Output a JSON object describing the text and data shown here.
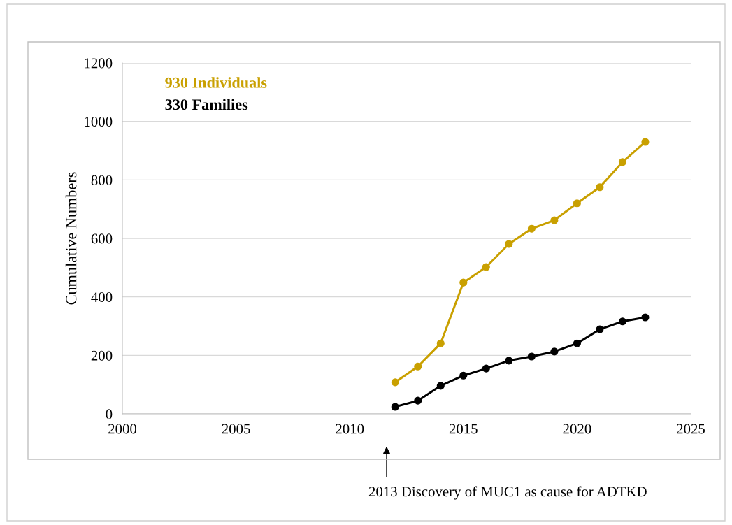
{
  "chart_data": {
    "type": "line",
    "ylabel": "Cumulative Numbers",
    "x": [
      2012,
      2013,
      2014,
      2015,
      2016,
      2017,
      2018,
      2019,
      2020,
      2021,
      2022,
      2023
    ],
    "series": [
      {
        "name": "930 Individuals",
        "color": "#c9a000",
        "values": [
          108,
          162,
          241,
          449,
          502,
          581,
          633,
          662,
          720,
          775,
          861,
          930
        ]
      },
      {
        "name": "330 Families",
        "color": "#000000",
        "values": [
          24,
          45,
          96,
          131,
          155,
          182,
          196,
          213,
          241,
          289,
          316,
          330
        ]
      }
    ],
    "xlim": [
      2000,
      2025
    ],
    "xticks": [
      2000,
      2005,
      2010,
      2015,
      2020,
      2025
    ],
    "ylim": [
      0,
      1200
    ],
    "yticks": [
      0,
      200,
      400,
      600,
      800,
      1000,
      1200
    ],
    "grid": "y",
    "legend": "top left",
    "marker": "circle",
    "line_style": "solid",
    "annotations": [
      "2013 Discovery of MUC1 as cause for ADTKD"
    ]
  }
}
